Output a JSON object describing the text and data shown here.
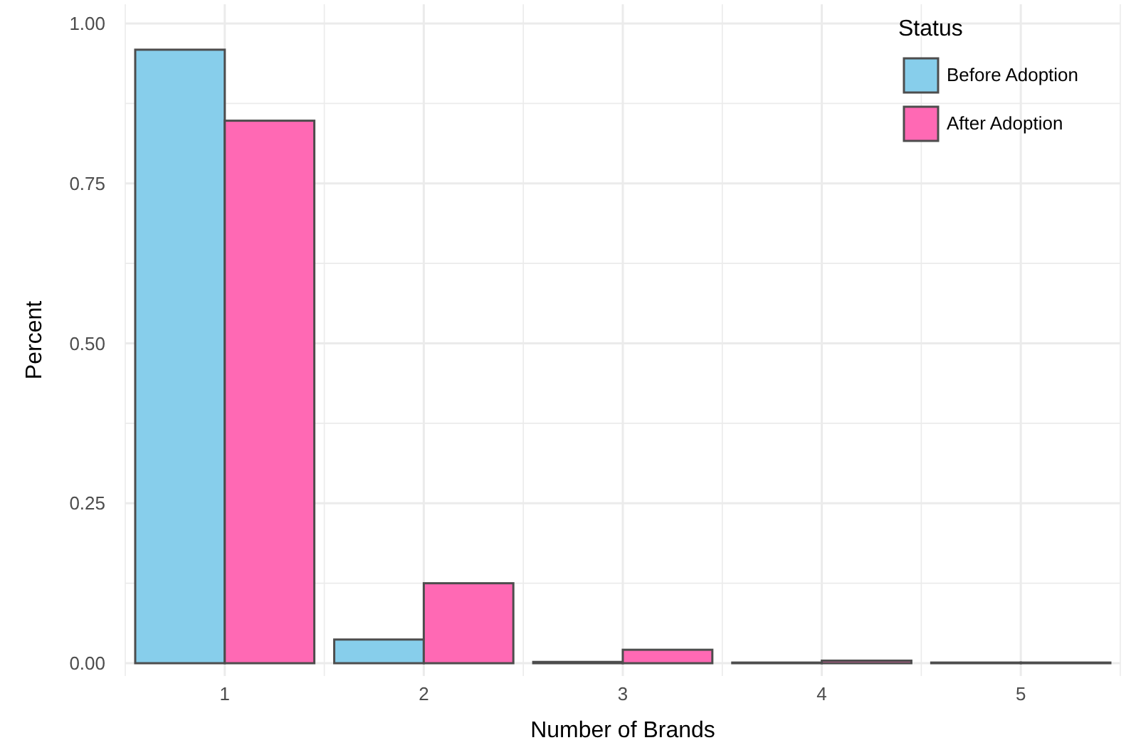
{
  "chart_data": {
    "type": "bar",
    "xlabel": "Number of Brands",
    "ylabel": "Percent",
    "legend_title": "Status",
    "categories": [
      "1",
      "2",
      "3",
      "4",
      "5"
    ],
    "series": [
      {
        "name": "Before Adoption",
        "color": "#87ceeb",
        "values": [
          0.959,
          0.037,
          0.002,
          0.001,
          0.001
        ]
      },
      {
        "name": "After Adoption",
        "color": "#ff69b4",
        "values": [
          0.848,
          0.125,
          0.021,
          0.004,
          0.001
        ]
      }
    ],
    "ylim": [
      -0.02,
      1.03
    ],
    "yticks": [
      {
        "value": 0,
        "label": "0.00"
      },
      {
        "value": 0.25,
        "label": "0.25"
      },
      {
        "value": 0.5,
        "label": "0.50"
      },
      {
        "value": 0.75,
        "label": "0.75"
      },
      {
        "value": 1,
        "label": "1.00"
      }
    ],
    "grid": true,
    "legend": "top right"
  }
}
